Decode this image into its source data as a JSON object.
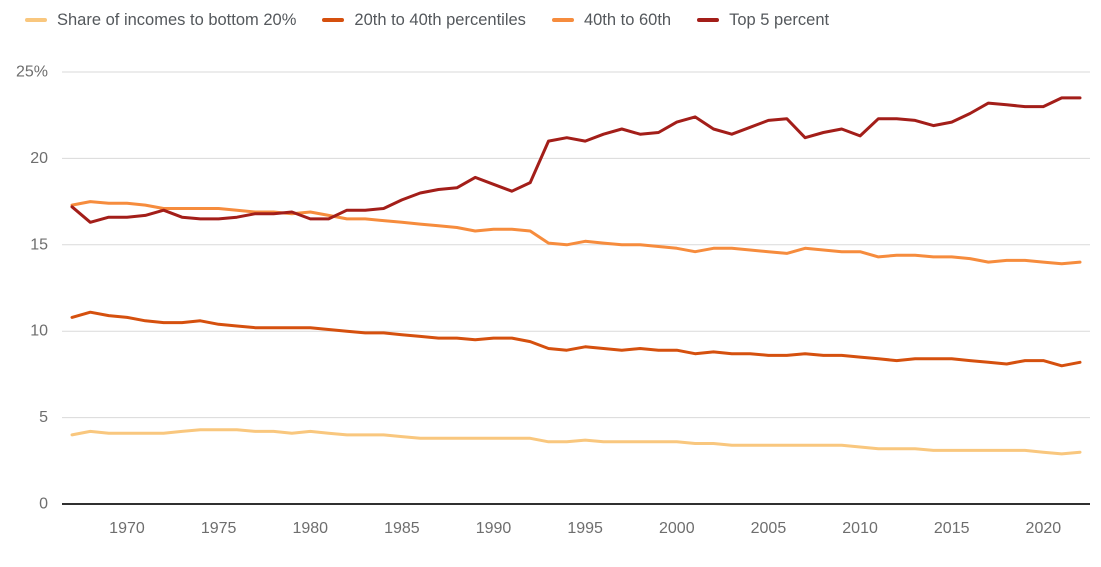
{
  "colors": {
    "background": "#FFFFFF",
    "gridline": "#DADADA",
    "axis_line": "#303030",
    "tick_label": "#6E6E6E",
    "legend_text": "#54585C"
  },
  "chart_data": {
    "type": "line",
    "x": [
      1967,
      1968,
      1969,
      1970,
      1971,
      1972,
      1973,
      1974,
      1975,
      1976,
      1977,
      1978,
      1979,
      1980,
      1981,
      1982,
      1983,
      1984,
      1985,
      1986,
      1987,
      1988,
      1989,
      1990,
      1991,
      1992,
      1993,
      1994,
      1995,
      1996,
      1997,
      1998,
      1999,
      2000,
      2001,
      2002,
      2003,
      2004,
      2005,
      2006,
      2007,
      2008,
      2009,
      2010,
      2011,
      2012,
      2013,
      2014,
      2015,
      2016,
      2017,
      2018,
      2019,
      2020,
      2021,
      2022
    ],
    "series": [
      {
        "name": "Share of incomes to bottom 20%",
        "color": "#F9C77E",
        "values": [
          4.0,
          4.2,
          4.1,
          4.1,
          4.1,
          4.1,
          4.2,
          4.3,
          4.3,
          4.3,
          4.2,
          4.2,
          4.1,
          4.2,
          4.1,
          4.0,
          4.0,
          4.0,
          3.9,
          3.8,
          3.8,
          3.8,
          3.8,
          3.8,
          3.8,
          3.8,
          3.6,
          3.6,
          3.7,
          3.6,
          3.6,
          3.6,
          3.6,
          3.6,
          3.5,
          3.5,
          3.4,
          3.4,
          3.4,
          3.4,
          3.4,
          3.4,
          3.4,
          3.3,
          3.2,
          3.2,
          3.2,
          3.1,
          3.1,
          3.1,
          3.1,
          3.1,
          3.1,
          3.0,
          2.9,
          3.0
        ]
      },
      {
        "name": "20th to 40th percentiles",
        "color": "#D5500E",
        "values": [
          10.8,
          11.1,
          10.9,
          10.8,
          10.6,
          10.5,
          10.5,
          10.6,
          10.4,
          10.3,
          10.2,
          10.2,
          10.2,
          10.2,
          10.1,
          10.0,
          9.9,
          9.9,
          9.8,
          9.7,
          9.6,
          9.6,
          9.5,
          9.6,
          9.6,
          9.4,
          9.0,
          8.9,
          9.1,
          9.0,
          8.9,
          9.0,
          8.9,
          8.9,
          8.7,
          8.8,
          8.7,
          8.7,
          8.6,
          8.6,
          8.7,
          8.6,
          8.6,
          8.5,
          8.4,
          8.3,
          8.4,
          8.4,
          8.4,
          8.3,
          8.2,
          8.1,
          8.3,
          8.3,
          8.0,
          8.2
        ]
      },
      {
        "name": "40th to 60th",
        "color": "#F68C3D",
        "values": [
          17.3,
          17.5,
          17.4,
          17.4,
          17.3,
          17.1,
          17.1,
          17.1,
          17.1,
          17.0,
          16.9,
          16.9,
          16.8,
          16.9,
          16.7,
          16.5,
          16.5,
          16.4,
          16.3,
          16.2,
          16.1,
          16.0,
          15.8,
          15.9,
          15.9,
          15.8,
          15.1,
          15.0,
          15.2,
          15.1,
          15.0,
          15.0,
          14.9,
          14.8,
          14.6,
          14.8,
          14.8,
          14.7,
          14.6,
          14.5,
          14.8,
          14.7,
          14.6,
          14.6,
          14.3,
          14.4,
          14.4,
          14.3,
          14.3,
          14.2,
          14.0,
          14.1,
          14.1,
          14.0,
          13.9,
          14.0
        ]
      },
      {
        "name": "Top 5 percent",
        "color": "#A31E19",
        "values": [
          17.2,
          16.3,
          16.6,
          16.6,
          16.7,
          17.0,
          16.6,
          16.5,
          16.5,
          16.6,
          16.8,
          16.8,
          16.9,
          16.5,
          16.5,
          17.0,
          17.0,
          17.1,
          17.6,
          18.0,
          18.2,
          18.3,
          18.9,
          18.5,
          18.1,
          18.6,
          21.0,
          21.2,
          21.0,
          21.4,
          21.7,
          21.4,
          21.5,
          22.1,
          22.4,
          21.7,
          21.4,
          21.8,
          22.2,
          22.3,
          21.2,
          21.5,
          21.7,
          21.3,
          22.3,
          22.3,
          22.2,
          21.9,
          22.1,
          22.6,
          23.2,
          23.1,
          23.0,
          23.0,
          23.5,
          23.5
        ]
      }
    ],
    "xlim": [
      1967,
      2022
    ],
    "ylim": [
      0,
      25
    ],
    "y_ticks": [
      25,
      20,
      15,
      10,
      5,
      0
    ],
    "y_tick_labels": [
      "25%",
      "20",
      "15",
      "10",
      "5",
      "0"
    ],
    "x_ticks": [
      1970,
      1975,
      1980,
      1985,
      1990,
      1995,
      2000,
      2005,
      2010,
      2015,
      2020
    ],
    "grid": "horizontal",
    "legend_position": "top"
  }
}
